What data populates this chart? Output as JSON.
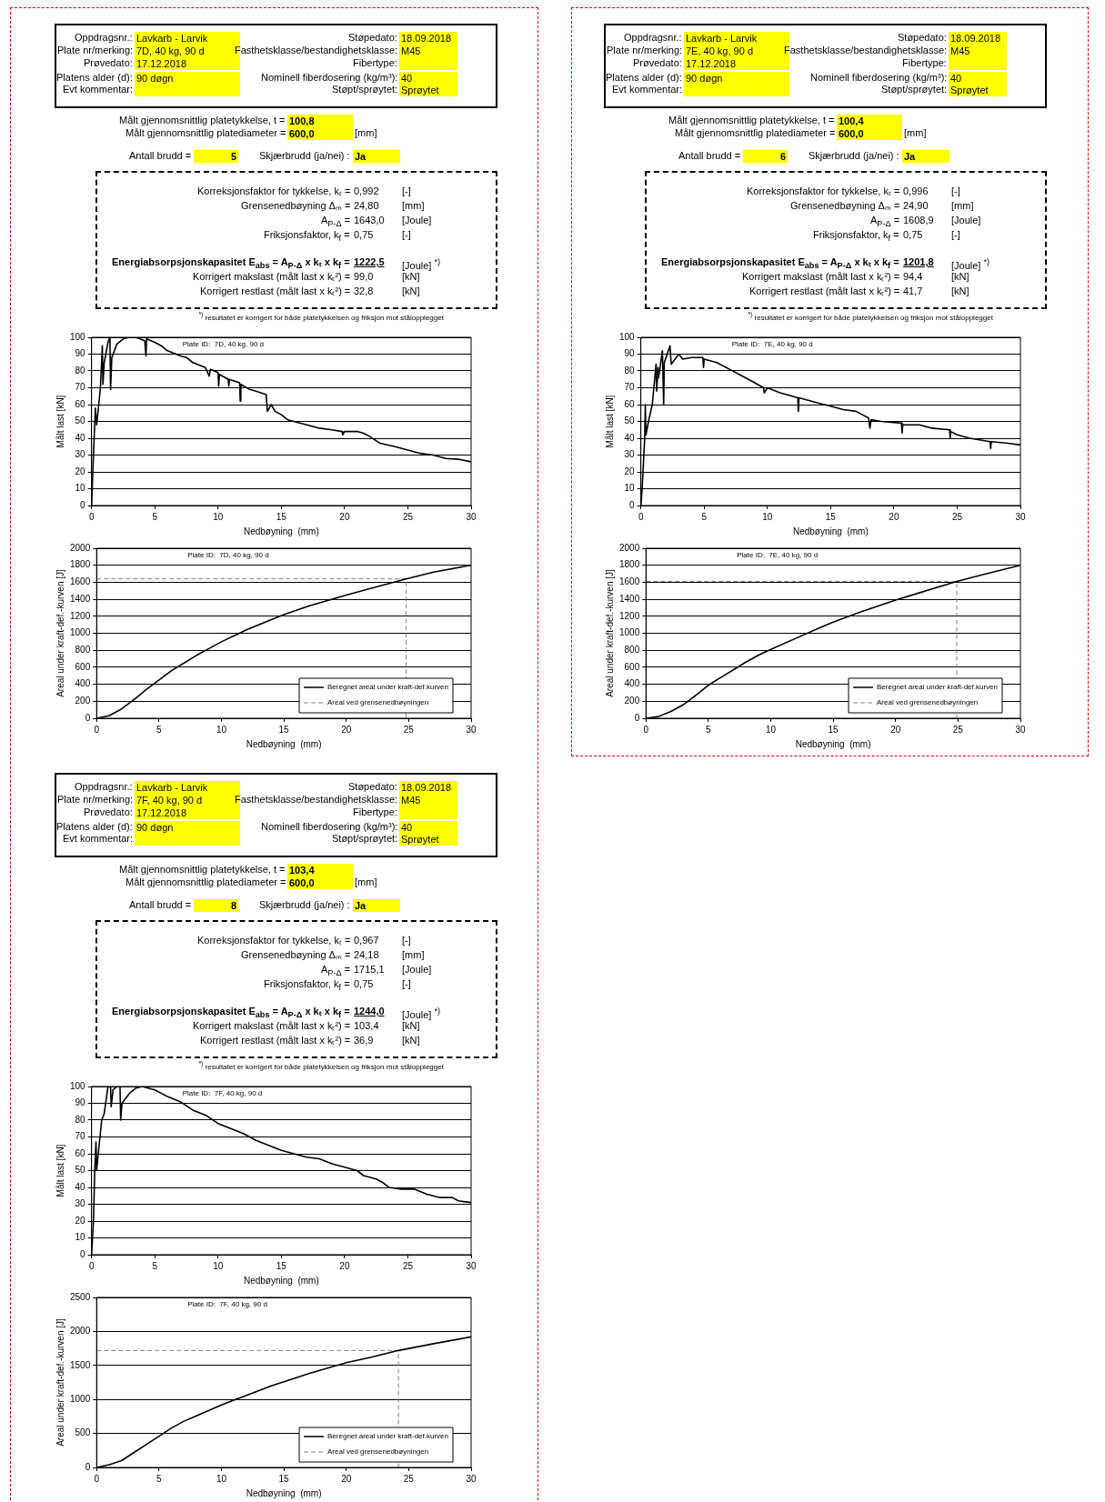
{
  "chart_data": [
    {
      "type": "other",
      "annotations": [
        "Oppdragsnr.:",
        "Lavkarb - Larvik",
        "Støpedato:",
        "18.09.2018",
        "Plate nr/merking:",
        "7D, 40 kg, 90 d",
        "Fasthetsklasse/bestandighetsklasse:",
        "M45",
        "Prøvedato:",
        "17.12.2018",
        "Fibertype:",
        "Platens alder (d):",
        "90 døgn",
        "Nominell fiberdosering (kg/m³):",
        "40",
        "Evt kommentar:",
        "Støpt/sprøytet:",
        "Sprøytet",
        "Målt gjennomsnittlig platetykkelse, t =",
        "100,8",
        "Målt gjennomsnittlig platediameter =",
        "600,0",
        "[mm]",
        "Antall brudd =",
        "5",
        "Skjærbrudd (ja/nei) :",
        "Ja",
        "Korreksjonsfaktor for tykkelse, kₜ =",
        "0,992",
        "[-]",
        "Grensenedbøyning Δₘ =",
        "24,80",
        "[mm]",
        "A$_{P-Δ}$ =",
        "1643,0",
        "[Joule]",
        "Friksjonsfaktor, k$_{f}$ =",
        "0,75",
        "[-]",
        "Energiabsorpsjonskapasitet E$_{abs}$ = A$_{P-Δ}$  x  kₜ  x  k$_{f}$ =",
        "1222,5",
        "[Joule] $^{*)}$",
        "Korrigert makslast (målt last x kₜ²) =",
        "99,0",
        "[kN]",
        "Korrigert restlast (målt last x kₜ²) =",
        "32,8",
        "[kN]",
        "$^{*)}$ resultatet er korrigert for både platetykkelsen og friksjon mot stålopplegget"
      ]
    },
    {
      "type": "line",
      "title": "Plate ID:  7D, 40 kg, 90 d",
      "xlabel": "Nedbøyning  (mm)",
      "ylabel": "Målt last [kN]",
      "xlim": [
        0,
        30
      ],
      "xticks": [
        0,
        5,
        10,
        15,
        20,
        25,
        30
      ],
      "ylim": [
        0,
        100
      ],
      "yticks": [
        0,
        10,
        20,
        30,
        40,
        50,
        60,
        70,
        80,
        90,
        100
      ],
      "grid": "y",
      "legend": false,
      "marker": "none",
      "series": [
        {
          "color": "#000000",
          "x": [
            0,
            0.15,
            0.3,
            0.4,
            0.5,
            0.7,
            0.85,
            0.9,
            1.0,
            1.3,
            1.45,
            1.5,
            1.6,
            2.0,
            2.5,
            3.0,
            3.5,
            4.2,
            4.3,
            4.35,
            5.0,
            5.5,
            6,
            7,
            7.5,
            8,
            9,
            9.3,
            9.4,
            10,
            10.05,
            10.1,
            10.8,
            10.85,
            10.9,
            11.7,
            11.75,
            11.8,
            12.5,
            13,
            13.8,
            13.9,
            14.2,
            14.5,
            15,
            15.5,
            17,
            18,
            19,
            19.8,
            19.85,
            20,
            21,
            21.5,
            22,
            22.8,
            24,
            25,
            26,
            27,
            28,
            29,
            30
          ],
          "values": [
            0,
            30,
            58,
            48,
            55,
            70,
            95,
            72,
            85,
            97,
            100,
            69,
            88,
            96,
            99,
            100,
            100,
            98,
            89,
            99,
            97,
            95,
            92,
            89,
            88,
            85,
            82,
            77,
            81,
            79,
            71,
            78,
            75,
            71,
            75,
            73,
            62,
            72,
            69,
            68,
            66,
            56,
            60,
            56,
            54,
            51,
            48,
            46,
            45,
            44,
            42,
            44,
            44,
            43,
            41,
            37,
            35,
            33,
            31,
            30,
            28,
            27.5,
            26
          ]
        }
      ]
    },
    {
      "type": "line",
      "title": "Plate ID:  7D, 40 kg, 90 d",
      "xlabel": "Nedbøyning  (mm)",
      "ylabel": "Areal under kraft-def.-kurven [J]",
      "xlim": [
        0,
        30
      ],
      "xticks": [
        0,
        5,
        10,
        15,
        20,
        25,
        30
      ],
      "ylim": [
        0,
        2000
      ],
      "yticks": [
        0,
        200,
        400,
        600,
        800,
        1000,
        1200,
        1400,
        1600,
        1800,
        2000
      ],
      "grid": "y",
      "legend": "bottom right",
      "marker": "none",
      "series": [
        {
          "name": "Beregnet areal under kraft-def.kurven",
          "color": "#000000",
          "line_style": "solid",
          "x": [
            0,
            1,
            2,
            3,
            4,
            5,
            6,
            7,
            8,
            9,
            10,
            12,
            14,
            15,
            17,
            20,
            22,
            24.8,
            27,
            30
          ],
          "values": [
            0,
            30,
            110,
            220,
            340,
            450,
            560,
            650,
            740,
            820,
            900,
            1040,
            1160,
            1220,
            1320,
            1450,
            1530,
            1640,
            1720,
            1800
          ]
        },
        {
          "name": "Areal ved grensenedbøyningen",
          "color": "#808080",
          "line_style": "dashed",
          "x": [
            0,
            24.8,
            24.8
          ],
          "values": [
            1640,
            1640,
            0
          ]
        }
      ]
    },
    {
      "type": "other",
      "annotations": [
        "Oppdragsnr.:",
        "Lavkarb - Larvik",
        "Støpedato:",
        "18.09.2018",
        "Plate nr/merking:",
        "7E, 40 kg, 90 d",
        "Fasthetsklasse/bestandighetsklasse:",
        "M45",
        "Prøvedato:",
        "17.12.2018",
        "Fibertype:",
        "Platens alder (d):",
        "90 døgn",
        "Nominell fiberdosering (kg/m³):",
        "40",
        "Evt kommentar:",
        "Støpt/sprøytet:",
        "Sprøytet",
        "Målt gjennomsnittlig platetykkelse, t =",
        "100,4",
        "Målt gjennomsnittlig platediameter =",
        "600,0",
        "[mm]",
        "Antall brudd =",
        "6",
        "Skjærbrudd (ja/nei) :",
        "Ja",
        "Korreksjonsfaktor for tykkelse, kₜ =",
        "0,996",
        "[-]",
        "Grensenedbøyning Δₘ =",
        "24,90",
        "[mm]",
        "A$_{P-Δ}$ =",
        "1608,9",
        "[Joule]",
        "Friksjonsfaktor, k$_{f}$ =",
        "0,75",
        "[-]",
        "Energiabsorpsjonskapasitet E$_{abs}$ = A$_{P-Δ}$  x  kₜ  x  k$_{f}$ =",
        "1201,8",
        "[Joule] $^{*)}$",
        "Korrigert makslast (målt last x kₜ²) =",
        "94,4",
        "[kN]",
        "Korrigert restlast (målt last x kₜ²) =",
        "41,7",
        "[kN]",
        "$^{*)}$ resultatet er korrigert for både platetykkelsen og friksjon mot stålopplegget"
      ]
    },
    {
      "type": "line",
      "title": "Plate ID:  7E, 40 kg, 90 d",
      "xlabel": "Nedbøyning  (mm)",
      "ylabel": "Målt last [kN]",
      "xlim": [
        0,
        30
      ],
      "xticks": [
        0,
        5,
        10,
        15,
        20,
        25,
        30
      ],
      "ylim": [
        0,
        100
      ],
      "yticks": [
        0,
        10,
        20,
        30,
        40,
        50,
        60,
        70,
        80,
        90,
        100
      ],
      "grid": "y",
      "legend": false,
      "marker": "none",
      "series": [
        {
          "color": "#000000",
          "x": [
            0,
            0.1,
            0.3,
            0.35,
            0.4,
            0.6,
            0.9,
            1.2,
            1.25,
            1.35,
            1.4,
            1.7,
            1.8,
            1.85,
            2.3,
            2.4,
            3,
            3.3,
            4,
            4.9,
            4.95,
            5,
            6,
            7,
            8,
            9,
            9.7,
            9.75,
            10,
            11,
            12.4,
            12.45,
            12.5,
            14,
            15,
            16,
            17,
            18,
            18.1,
            18.2,
            19,
            20.6,
            20.65,
            20.7,
            22,
            23,
            24.4,
            24.45,
            24.5,
            25,
            26,
            27.6,
            27.65,
            27.7,
            29,
            30
          ],
          "values": [
            0,
            10,
            40,
            60,
            42,
            50,
            60,
            84,
            68,
            82,
            76,
            92,
            60,
            85,
            95,
            84,
            90,
            87,
            88,
            88,
            82,
            87,
            85,
            81,
            77,
            73,
            70,
            67,
            70,
            67,
            64,
            56,
            64,
            61,
            59,
            57,
            56,
            52,
            46,
            51,
            50,
            49,
            43,
            48,
            48,
            46,
            45,
            40,
            44,
            42,
            40,
            38,
            34,
            38,
            37,
            36
          ]
        }
      ]
    },
    {
      "type": "line",
      "title": "Plate ID:  7E, 40 kg, 90 d",
      "xlabel": "Nedbøyning  (mm)",
      "ylabel": "Areal under kraft-def.-kurven [J]",
      "xlim": [
        0,
        30
      ],
      "xticks": [
        0,
        5,
        10,
        15,
        20,
        25,
        30
      ],
      "ylim": [
        0,
        2000
      ],
      "yticks": [
        0,
        200,
        400,
        600,
        800,
        1000,
        1200,
        1400,
        1600,
        1800,
        2000
      ],
      "grid": "y",
      "legend": "bottom right",
      "marker": "none",
      "series": [
        {
          "name": "Beregnet areal under kraft-def.kurven",
          "color": "#000000",
          "line_style": "solid",
          "x": [
            0,
            1,
            2,
            3,
            4,
            5,
            6,
            7,
            8,
            9,
            10,
            12,
            14,
            15,
            17,
            20,
            22,
            24.9,
            27,
            30
          ],
          "values": [
            0,
            20,
            80,
            160,
            270,
            390,
            480,
            570,
            660,
            740,
            810,
            940,
            1070,
            1130,
            1240,
            1390,
            1480,
            1610,
            1690,
            1800
          ]
        },
        {
          "name": "Areal ved grensenedbøyningen",
          "color": "#808080",
          "line_style": "dashed",
          "x": [
            0,
            24.9,
            24.9
          ],
          "values": [
            1610,
            1610,
            0
          ]
        }
      ]
    },
    {
      "type": "other",
      "annotations": [
        "Oppdragsnr.:",
        "Lavkarb - Larvik",
        "Støpedato:",
        "18.09.2018",
        "Plate nr/merking:",
        "7F, 40 kg, 90 d",
        "Fasthetsklasse/bestandighetsklasse:",
        "M45",
        "Prøvedato:",
        "17.12.2018",
        "Fibertype:",
        "Platens alder (d):",
        "90 døgn",
        "Nominell fiberdosering (kg/m³):",
        "40",
        "Evt kommentar:",
        "Støpt/sprøytet:",
        "Sprøytet",
        "Målt gjennomsnittlig platetykkelse, t =",
        "103,4",
        "Målt gjennomsnittlig platediameter =",
        "600,0",
        "[mm]",
        "Antall brudd =",
        "8",
        "Skjærbrudd (ja/nei) :",
        "Ja",
        "Korreksjonsfaktor for tykkelse, kₜ =",
        "0,967",
        "[-]",
        "Grensenedbøyning Δₘ =",
        "24,18",
        "[mm]",
        "A$_{P-Δ}$ =",
        "1715,1",
        "[Joule]",
        "Friksjonsfaktor, k$_{f}$ =",
        "0,75",
        "[-]",
        "Energiabsorpsjonskapasitet E$_{abs}$ = A$_{P-Δ}$  x  kₜ  x  k$_{f}$ =",
        "1244,0",
        "[Joule] $^{*)}$",
        "Korrigert makslast (målt last x kₜ²) =",
        "103,4",
        "[kN]",
        "Korrigert restlast (målt last x kₜ²) =",
        "36,9",
        "[kN]",
        "$^{*)}$ resultatet er korrigert for både platetykkelsen og friksjon mot stålopplegget"
      ]
    },
    {
      "type": "line",
      "title": "Plate ID:  7F, 40 kg, 90 d",
      "xlabel": "Nedbøyning  (mm)",
      "ylabel": "Målt last [kN]",
      "xlim": [
        0,
        30
      ],
      "xticks": [
        0,
        5,
        10,
        15,
        20,
        25,
        30
      ],
      "ylim": [
        0,
        100
      ],
      "yticks": [
        0,
        10,
        20,
        30,
        40,
        50,
        60,
        70,
        80,
        90,
        100
      ],
      "grid": "y",
      "legend": false,
      "marker": "none",
      "series": [
        {
          "color": "#000000",
          "x": [
            0,
            0.15,
            0.25,
            0.35,
            0.4,
            0.5,
            0.8,
            1.0,
            1.3,
            1.5,
            1.55,
            1.7,
            2.0,
            2.25,
            2.3,
            2.4,
            3,
            3.5,
            4,
            5,
            6,
            7,
            8,
            9,
            10,
            11,
            12,
            13,
            14,
            15,
            16,
            17,
            18,
            19,
            20,
            21,
            21.5,
            22.5,
            23,
            23.5,
            24.5,
            25.5,
            26.5,
            27.5,
            28.5,
            29,
            30
          ],
          "values": [
            0,
            20,
            50,
            67,
            50,
            58,
            80,
            84,
            100,
            100,
            88,
            98,
            100,
            100,
            80,
            90,
            96,
            99,
            100,
            98,
            94,
            91,
            86,
            83,
            78,
            75,
            72,
            68,
            65,
            62,
            60,
            58,
            57,
            54,
            52,
            50,
            47,
            45,
            43,
            40,
            39,
            39,
            36,
            34,
            34,
            32,
            31
          ]
        }
      ]
    },
    {
      "type": "line",
      "title": "Plate ID:  7F, 40 kg, 90 d",
      "xlabel": "Nedbøyning  (mm)",
      "ylabel": "Areal under kraft-def.-kurven [J]",
      "xlim": [
        0,
        30
      ],
      "xticks": [
        0,
        5,
        10,
        15,
        20,
        25,
        30
      ],
      "ylim": [
        0,
        2500
      ],
      "yticks": [
        0,
        500,
        1000,
        1500,
        2000,
        2500
      ],
      "grid": "y",
      "legend": "bottom right",
      "marker": "none",
      "series": [
        {
          "name": "Beregnet areal under kraft-def.kurven",
          "color": "#000000",
          "line_style": "solid",
          "x": [
            0,
            1,
            2,
            3,
            4,
            5,
            6,
            7,
            8,
            9,
            10,
            12,
            14,
            15,
            17,
            20,
            22,
            24.18,
            27,
            30
          ],
          "values": [
            0,
            40,
            100,
            220,
            340,
            460,
            580,
            680,
            760,
            840,
            920,
            1060,
            1200,
            1260,
            1380,
            1540,
            1620,
            1720,
            1820,
            1920
          ]
        },
        {
          "name": "Areal ved grensenedbøyningen",
          "color": "#808080",
          "line_style": "dashed",
          "x": [
            0,
            24.18,
            24.18
          ],
          "values": [
            1720,
            1720,
            0
          ]
        }
      ]
    }
  ]
}
